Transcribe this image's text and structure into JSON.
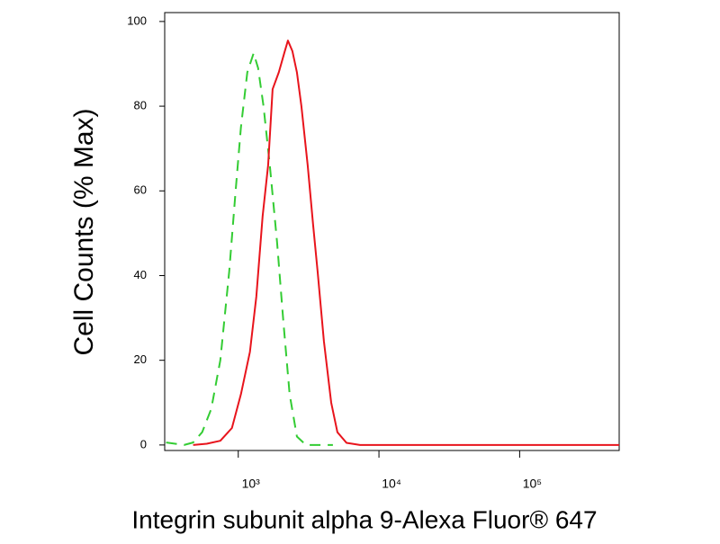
{
  "chart_data": {
    "type": "line",
    "x_label": "Integrin subunit alpha 9-Alexa Fluor® 647",
    "y_label": "Cell Counts (% Max)",
    "x_scale": "log",
    "xlim": [
      300,
      510000
    ],
    "ylim": [
      -1.3,
      102.1
    ],
    "xticks": [
      {
        "value": 1000,
        "label": "10³"
      },
      {
        "value": 10000,
        "label": "10⁴"
      },
      {
        "value": 100000,
        "label": "10⁵"
      }
    ],
    "yticks": [
      0,
      20,
      40,
      60,
      80,
      100
    ],
    "series": [
      {
        "name": "red",
        "color": "#e8141c",
        "dash": false,
        "x": [
          478,
          597,
          745,
          902,
          1045,
          1211,
          1343,
          1489,
          1629,
          1754,
          1942,
          2123,
          2254,
          2427,
          2611,
          2812,
          3117,
          3406,
          3666,
          4064,
          4574,
          5070,
          5875,
          7328,
          510000
        ],
        "values": [
          0,
          0.3,
          1,
          4,
          12,
          22,
          35,
          54,
          66,
          84,
          88,
          92.5,
          95.5,
          93,
          88,
          80,
          66,
          52,
          41,
          24.5,
          10,
          3,
          0.5,
          0,
          0
        ]
      },
      {
        "name": "green",
        "color": "#33cc33",
        "dash": true,
        "x": [
          307,
          412,
          478,
          554,
          642,
          745,
          863,
          957,
          1045,
          1159,
          1285,
          1384,
          1511,
          1675,
          1887,
          2093,
          2319,
          2611,
          3030,
          4710
        ],
        "values": [
          0.6,
          0,
          0.6,
          3,
          8.5,
          20,
          41,
          60,
          75,
          88,
          92.5,
          89,
          80,
          66,
          48,
          29,
          12,
          2,
          0,
          0
        ]
      }
    ]
  }
}
